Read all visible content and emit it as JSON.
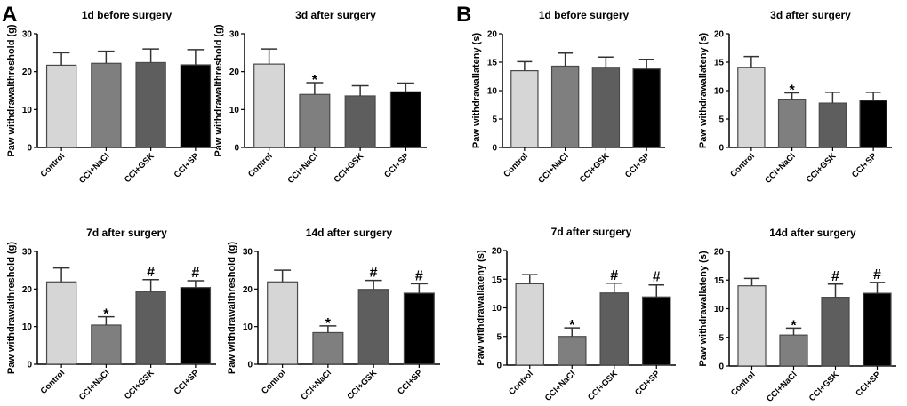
{
  "panel_labels": [
    "A",
    "B"
  ],
  "chart_data": [
    {
      "type": "bar",
      "panel": "A",
      "title": "1d before surgery",
      "ylabel": "Paw withdrawalthreshold (g)",
      "ylim": [
        0,
        30
      ],
      "yticks": [
        0,
        10,
        20,
        30
      ],
      "categories": [
        "Control",
        "CCI+NaCl",
        "CCI+GSK",
        "CCI+SP"
      ],
      "values": [
        21.7,
        22.2,
        22.4,
        21.8
      ],
      "errors": [
        3.3,
        3.2,
        3.6,
        4.0
      ],
      "annotations": [
        "",
        "",
        "",
        ""
      ]
    },
    {
      "type": "bar",
      "panel": "A",
      "title": "3d after surgery",
      "ylabel": "Paw withdrawalthreshold (g)",
      "ylim": [
        0,
        30
      ],
      "yticks": [
        0,
        10,
        20,
        30
      ],
      "categories": [
        "Control",
        "CCI+NaCl",
        "CCI+GSK",
        "CCI+SP"
      ],
      "values": [
        22.0,
        14.0,
        13.6,
        14.7
      ],
      "errors": [
        4.0,
        3.1,
        2.7,
        2.3
      ],
      "annotations": [
        "",
        "*",
        "",
        ""
      ]
    },
    {
      "type": "bar",
      "panel": "A",
      "title": "7d after surgery",
      "ylabel": "Paw withdrawalthreshold (g)",
      "ylim": [
        0,
        30
      ],
      "yticks": [
        0,
        10,
        20,
        30
      ],
      "categories": [
        "Control",
        "CCI+NaCl",
        "CCI+GSK",
        "CCI+SP"
      ],
      "values": [
        21.9,
        10.4,
        19.3,
        20.4
      ],
      "errors": [
        3.7,
        2.2,
        3.2,
        1.8
      ],
      "annotations": [
        "",
        "*",
        "#",
        "#"
      ]
    },
    {
      "type": "bar",
      "panel": "A",
      "title": "14d after surgery",
      "ylabel": "Paw withdrawalthreshold (g)",
      "ylim": [
        0,
        30
      ],
      "yticks": [
        0,
        10,
        20,
        30
      ],
      "categories": [
        "Control",
        "CCI+NaCl",
        "CCI+GSK",
        "CCI+SP"
      ],
      "values": [
        21.9,
        8.4,
        19.9,
        18.9
      ],
      "errors": [
        3.1,
        1.8,
        2.4,
        2.5
      ],
      "annotations": [
        "",
        "*",
        "#",
        "#"
      ]
    },
    {
      "type": "bar",
      "panel": "B",
      "title": "1d before surgery",
      "ylabel": "Paw withdrawallateny (s)",
      "ylim": [
        0,
        20
      ],
      "yticks": [
        0,
        5,
        10,
        15,
        20
      ],
      "categories": [
        "Control",
        "CCI+NaCl",
        "CCI+GSK",
        "CCI+SP"
      ],
      "values": [
        13.5,
        14.3,
        14.1,
        13.8
      ],
      "errors": [
        1.6,
        2.3,
        1.8,
        1.7
      ],
      "annotations": [
        "",
        "",
        "",
        ""
      ]
    },
    {
      "type": "bar",
      "panel": "B",
      "title": "3d after surgery",
      "ylabel": "Paw withdrawallateny (s)",
      "ylim": [
        0,
        20
      ],
      "yticks": [
        0,
        5,
        10,
        15,
        20
      ],
      "categories": [
        "Control",
        "CCI+NaCl",
        "CCI+GSK",
        "CCI+SP"
      ],
      "values": [
        14.1,
        8.5,
        7.8,
        8.3
      ],
      "errors": [
        1.9,
        1.1,
        1.9,
        1.4
      ],
      "annotations": [
        "",
        "*",
        "",
        ""
      ]
    },
    {
      "type": "bar",
      "panel": "B",
      "title": "7d after surgery",
      "ylabel": "Paw withdrawallateny (s)",
      "ylim": [
        0,
        20
      ],
      "yticks": [
        0,
        5,
        10,
        15,
        20
      ],
      "categories": [
        "Control",
        "CCI+NaCl",
        "CCI+GSK",
        "CCI+SP"
      ],
      "values": [
        14.2,
        5.0,
        12.6,
        11.9
      ],
      "errors": [
        1.6,
        1.5,
        1.7,
        2.1
      ],
      "annotations": [
        "",
        "*",
        "#",
        "#"
      ]
    },
    {
      "type": "bar",
      "panel": "B",
      "title": "14d after surgery",
      "ylabel": "Paw withdrawallateny (s)",
      "ylim": [
        0,
        20
      ],
      "yticks": [
        0,
        5,
        10,
        15,
        20
      ],
      "categories": [
        "Control",
        "CCI+NaCl",
        "CCI+GSK",
        "CCI+SP"
      ],
      "values": [
        14.0,
        5.4,
        12.0,
        12.7
      ],
      "errors": [
        1.3,
        1.2,
        2.3,
        1.9
      ],
      "annotations": [
        "",
        "*",
        "#",
        "#"
      ]
    }
  ],
  "bar_colors": [
    "#d6d6d6",
    "#7f7f7f",
    "#5e5e5e",
    "#000000"
  ],
  "bar_stroke": "#4a4a4a"
}
